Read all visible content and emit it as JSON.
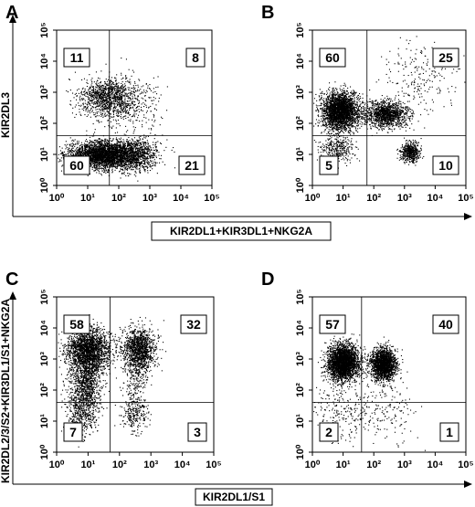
{
  "figure": {
    "x_axis_title_top": "KIR2DL1+KIR3DL1+NKG2A",
    "y_axis_title_top": "KIR2DL3",
    "x_axis_title_bottom": "KIR2DL1/S1",
    "y_axis_title_bottom": "KIR2DL2/3/S2+KIR3DL1/S1+NKG2A"
  },
  "chart_data": [
    {
      "type": "scatter",
      "panel": "A",
      "xlabel": "KIR2DL1+KIR3DL1+NKG2A",
      "ylabel": "KIR2DL3",
      "x_scale": "log",
      "y_scale": "log",
      "xlim": [
        1,
        100000
      ],
      "ylim": [
        1,
        100000
      ],
      "x_ticks": [
        "10⁰",
        "10¹",
        "10²",
        "10³",
        "10⁴",
        "10⁵"
      ],
      "y_ticks": [
        "10⁰",
        "10¹",
        "10²",
        "10³",
        "10⁴",
        "10⁵"
      ],
      "gate": {
        "x": 50,
        "y": 40
      },
      "quadrant_percentages": {
        "upper_left": "11",
        "upper_right": "8",
        "lower_left": "60",
        "lower_right": "21"
      },
      "populations": [
        {
          "cx": 30,
          "cy": 10,
          "sx": 0.55,
          "sy": 0.22,
          "weight": 0.55
        },
        {
          "cx": 40,
          "cy": 700,
          "sx": 0.45,
          "sy": 0.3,
          "weight": 0.2
        },
        {
          "cx": 300,
          "cy": 10,
          "sx": 0.4,
          "sy": 0.25,
          "weight": 0.18
        },
        {
          "cx": 200,
          "cy": 500,
          "sx": 0.5,
          "sy": 0.4,
          "weight": 0.07
        }
      ]
    },
    {
      "type": "scatter",
      "panel": "B",
      "xlabel": "KIR2DL1+KIR3DL1+NKG2A",
      "ylabel": "KIR2DL3",
      "x_scale": "log",
      "y_scale": "log",
      "xlim": [
        1,
        100000
      ],
      "ylim": [
        1,
        100000
      ],
      "x_ticks": [
        "10⁰",
        "10¹",
        "10²",
        "10³",
        "10⁴",
        "10⁵"
      ],
      "y_ticks": [
        "10⁰",
        "10¹",
        "10²",
        "10³",
        "10⁴",
        "10⁵"
      ],
      "gate": {
        "x": 60,
        "y": 40
      },
      "quadrant_percentages": {
        "upper_left": "60",
        "upper_right": "25",
        "lower_left": "5",
        "lower_right": "10"
      },
      "populations": [
        {
          "cx": 8,
          "cy": 250,
          "sx": 0.3,
          "sy": 0.3,
          "weight": 0.55
        },
        {
          "cx": 250,
          "cy": 200,
          "sx": 0.35,
          "sy": 0.2,
          "weight": 0.25
        },
        {
          "cx": 1500,
          "cy": 12,
          "sx": 0.15,
          "sy": 0.15,
          "weight": 0.1
        },
        {
          "cx": 6,
          "cy": 15,
          "sx": 0.3,
          "sy": 0.2,
          "weight": 0.06
        },
        {
          "cx": 3000,
          "cy": 3000,
          "sx": 0.6,
          "sy": 0.6,
          "weight": 0.04
        }
      ]
    },
    {
      "type": "scatter",
      "panel": "C",
      "xlabel": "KIR2DL1/S1",
      "ylabel": "KIR2DL2/3/S2+KIR3DL1/S1+NKG2A",
      "x_scale": "log",
      "y_scale": "log",
      "xlim": [
        1,
        100000
      ],
      "ylim": [
        1,
        100000
      ],
      "x_ticks": [
        "10⁰",
        "10¹",
        "10²",
        "10³",
        "10⁴",
        "10⁵"
      ],
      "y_ticks": [
        "10⁰",
        "10¹",
        "10²",
        "10³",
        "10⁴",
        "10⁵"
      ],
      "gate": {
        "x": 50,
        "y": 40
      },
      "quadrant_percentages": {
        "upper_left": "58",
        "upper_right": "32",
        "lower_left": "7",
        "lower_right": "3"
      },
      "populations": [
        {
          "cx": 10,
          "cy": 2000,
          "sx": 0.35,
          "sy": 0.35,
          "weight": 0.4
        },
        {
          "cx": 8,
          "cy": 150,
          "sx": 0.25,
          "sy": 0.55,
          "weight": 0.2
        },
        {
          "cx": 6,
          "cy": 20,
          "sx": 0.25,
          "sy": 0.35,
          "weight": 0.07
        },
        {
          "cx": 400,
          "cy": 2000,
          "sx": 0.25,
          "sy": 0.35,
          "weight": 0.25
        },
        {
          "cx": 300,
          "cy": 20,
          "sx": 0.2,
          "sy": 0.3,
          "weight": 0.05
        },
        {
          "cx": 300,
          "cy": 200,
          "sx": 0.2,
          "sy": 0.4,
          "weight": 0.03
        }
      ]
    },
    {
      "type": "scatter",
      "panel": "D",
      "xlabel": "KIR2DL1/S1",
      "ylabel": "KIR2DL2/3/S2+KIR3DL1/S1+NKG2A",
      "x_scale": "log",
      "y_scale": "log",
      "xlim": [
        1,
        100000
      ],
      "ylim": [
        1,
        100000
      ],
      "x_ticks": [
        "10⁰",
        "10¹",
        "10²",
        "10³",
        "10⁴",
        "10⁵"
      ],
      "y_ticks": [
        "10⁰",
        "10¹",
        "10²",
        "10³",
        "10⁴",
        "10⁵"
      ],
      "gate": {
        "x": 40,
        "y": 40
      },
      "quadrant_percentages": {
        "upper_left": "57",
        "upper_right": "40",
        "lower_left": "2",
        "lower_right": "1"
      },
      "populations": [
        {
          "cx": 10,
          "cy": 800,
          "sx": 0.25,
          "sy": 0.28,
          "weight": 0.55
        },
        {
          "cx": 200,
          "cy": 700,
          "sx": 0.2,
          "sy": 0.25,
          "weight": 0.37
        },
        {
          "cx": 8,
          "cy": 20,
          "sx": 0.6,
          "sy": 0.5,
          "weight": 0.05
        },
        {
          "cx": 200,
          "cy": 20,
          "sx": 0.6,
          "sy": 0.5,
          "weight": 0.03
        }
      ]
    }
  ]
}
